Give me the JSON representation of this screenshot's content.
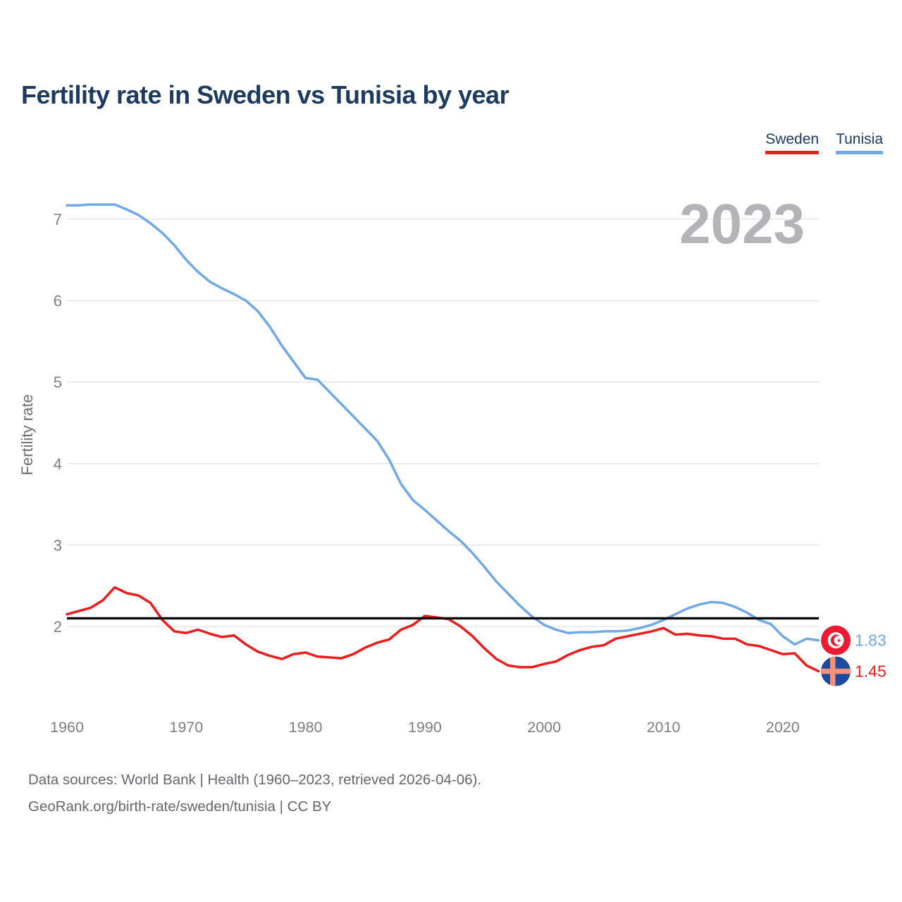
{
  "title": "Fertility rate in Sweden vs Tunisia by year",
  "watermark": "2023",
  "legend": [
    {
      "label": "Sweden",
      "color": "#ee1c1c"
    },
    {
      "label": "Tunisia",
      "color": "#70a9e6"
    }
  ],
  "y_axis": {
    "title": "Fertility rate",
    "ticks": [
      2,
      3,
      4,
      5,
      6,
      7
    ]
  },
  "x_axis": {
    "ticks": [
      1960,
      1970,
      1980,
      1990,
      2000,
      2010,
      2020
    ]
  },
  "end_labels": [
    {
      "series": "Tunisia",
      "value": "1.83",
      "flag": "tunisia-flag",
      "color": "#70a9e6"
    },
    {
      "series": "Sweden",
      "value": "1.45",
      "flag": "sweden-flag",
      "color": "#ee1c1c"
    }
  ],
  "footer": {
    "line1": "Data sources: World Bank | Health (1960–2023, retrieved 2026-04-06).",
    "line2": "GeoRank.org/birth-rate/sweden/tunisia | CC BY"
  },
  "colors": {
    "sweden_line": "#ee1c1c",
    "tunisia_line": "#70a9e6",
    "reference_line": "#0b0b0b",
    "title_text": "#1d3a5f",
    "watermark": "#b4b4b8",
    "axis_text": "#7e7e84",
    "gridline": "#e7e7ea",
    "footer_text": "#66666b",
    "tunisia_flag_red": "#ed1b2f",
    "sweden_flag_blue": "#1b4a9e",
    "sweden_flag_cross": "#f2917e"
  },
  "chart_data": {
    "type": "line",
    "title": "Fertility rate in Sweden vs Tunisia by year",
    "xlabel": "",
    "ylabel": "Fertility rate",
    "xlim": [
      1960,
      2023
    ],
    "ylim": [
      2,
      7
    ],
    "grid": true,
    "legend_position": "top-right",
    "reference_line": 2.1,
    "x": [
      1960,
      1961,
      1962,
      1963,
      1964,
      1965,
      1966,
      1967,
      1968,
      1969,
      1970,
      1971,
      1972,
      1973,
      1974,
      1975,
      1976,
      1977,
      1978,
      1979,
      1980,
      1981,
      1982,
      1983,
      1984,
      1985,
      1986,
      1987,
      1988,
      1989,
      1990,
      1991,
      1992,
      1993,
      1994,
      1995,
      1996,
      1997,
      1998,
      1999,
      2000,
      2001,
      2002,
      2003,
      2004,
      2005,
      2006,
      2007,
      2008,
      2009,
      2010,
      2011,
      2012,
      2013,
      2014,
      2015,
      2016,
      2017,
      2018,
      2019,
      2020,
      2021,
      2022,
      2023
    ],
    "series": [
      {
        "name": "Tunisia",
        "color": "#70a9e6",
        "values": [
          7.17,
          7.17,
          7.18,
          7.18,
          7.18,
          7.12,
          7.05,
          6.95,
          6.83,
          6.68,
          6.5,
          6.35,
          6.23,
          6.15,
          6.08,
          6.0,
          5.87,
          5.68,
          5.45,
          5.25,
          5.05,
          5.03,
          4.88,
          4.73,
          4.58,
          4.43,
          4.28,
          4.05,
          3.75,
          3.55,
          3.43,
          3.3,
          3.17,
          3.05,
          2.9,
          2.73,
          2.55,
          2.4,
          2.25,
          2.12,
          2.02,
          1.96,
          1.92,
          1.93,
          1.93,
          1.94,
          1.94,
          1.95,
          1.98,
          2.02,
          2.08,
          2.15,
          2.22,
          2.27,
          2.3,
          2.29,
          2.24,
          2.17,
          2.08,
          2.03,
          1.88,
          1.78,
          1.85,
          1.83
        ]
      },
      {
        "name": "Sweden",
        "color": "#ee1c1c",
        "values": [
          2.15,
          2.19,
          2.23,
          2.32,
          2.48,
          2.41,
          2.38,
          2.29,
          2.08,
          1.94,
          1.92,
          1.96,
          1.91,
          1.87,
          1.89,
          1.78,
          1.69,
          1.64,
          1.6,
          1.66,
          1.68,
          1.63,
          1.62,
          1.61,
          1.66,
          1.74,
          1.8,
          1.84,
          1.96,
          2.02,
          2.13,
          2.11,
          2.09,
          2.0,
          1.88,
          1.73,
          1.6,
          1.52,
          1.5,
          1.5,
          1.54,
          1.57,
          1.65,
          1.71,
          1.75,
          1.77,
          1.85,
          1.88,
          1.91,
          1.94,
          1.98,
          1.9,
          1.91,
          1.89,
          1.88,
          1.85,
          1.85,
          1.78,
          1.76,
          1.71,
          1.66,
          1.67,
          1.52,
          1.45
        ]
      }
    ]
  }
}
